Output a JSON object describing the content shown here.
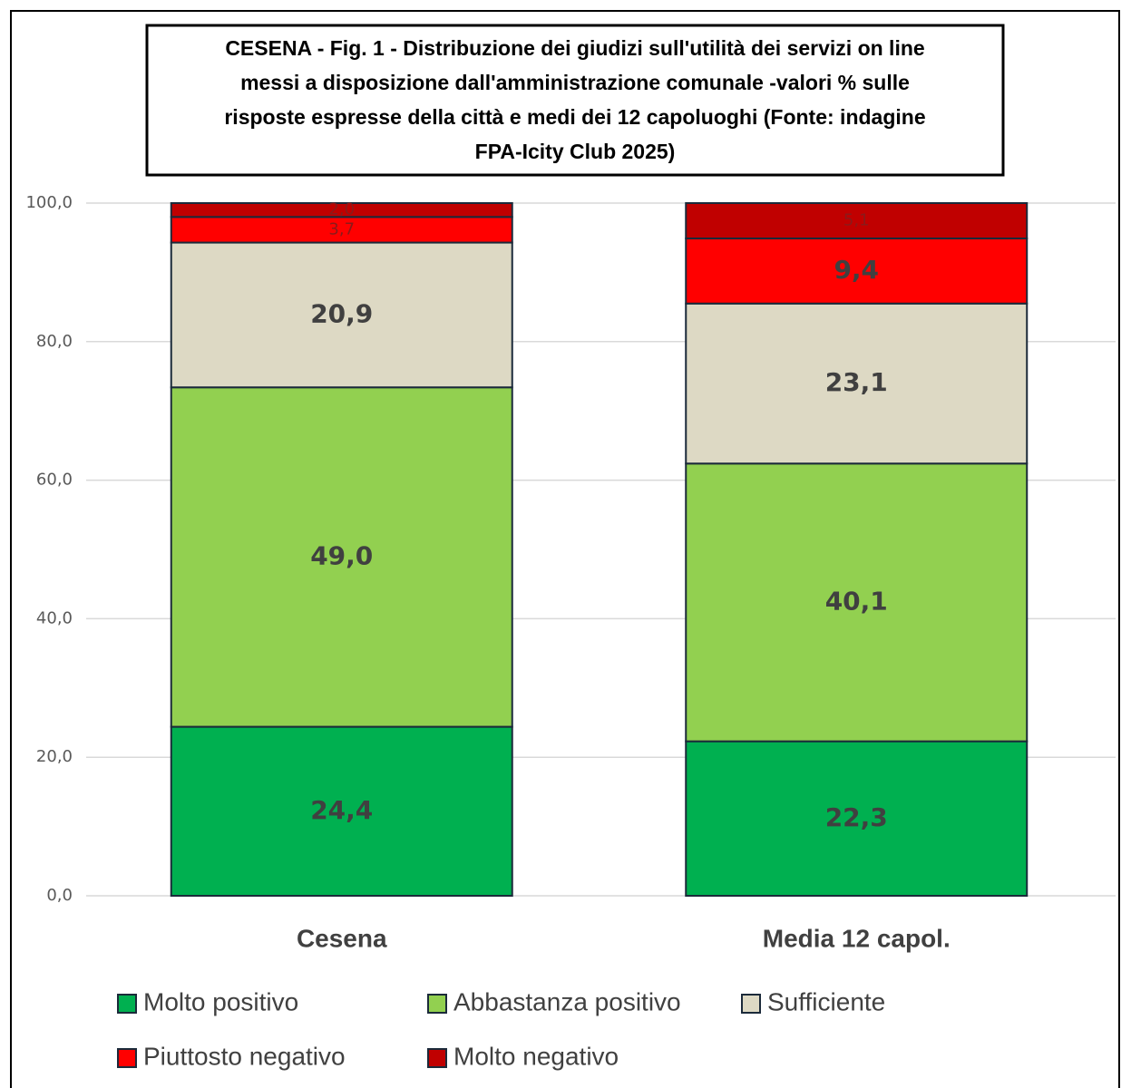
{
  "chart_data": {
    "type": "stacked_bar",
    "title": [
      "CESENA - Fig. 1 - Distribuzione dei giudizi sull'utilità dei servizi on line",
      "messi a disposizione dall'amministrazione  comunale  -valori % sulle",
      "risposte espresse della città e medi dei 12 capoluoghi  (Fonte: indagine",
      "FPA-Icity Club 2025)"
    ],
    "categories": [
      "Cesena",
      "Media 12 capol."
    ],
    "series": [
      {
        "name": "Molto positivo",
        "color": "#00b050",
        "values": [
          24.4,
          22.3
        ],
        "value_labels": [
          "24,4",
          "22,3"
        ]
      },
      {
        "name": "Abbastanza positivo",
        "color": "#92d050",
        "values": [
          49.0,
          40.1
        ],
        "value_labels": [
          "49,0",
          "40,1"
        ]
      },
      {
        "name": "Sufficiente",
        "color": "#ddd9c4",
        "values": [
          20.9,
          23.1
        ],
        "value_labels": [
          "20,9",
          "23,1"
        ]
      },
      {
        "name": "Piuttosto negativo",
        "color": "#ff0000",
        "values": [
          3.7,
          9.4
        ],
        "value_labels": [
          "3,7",
          "9,4"
        ]
      },
      {
        "name": "Molto negativo",
        "color": "#c00000",
        "values": [
          2.0,
          5.1
        ],
        "value_labels": [
          "2,0",
          "5,1"
        ]
      }
    ],
    "ylim": [
      0,
      100
    ],
    "yticks": [
      {
        "value": 0,
        "label": "0,0"
      },
      {
        "value": 20,
        "label": "20,0"
      },
      {
        "value": 40,
        "label": "40,0"
      },
      {
        "value": 60,
        "label": "60,0"
      },
      {
        "value": 80,
        "label": "80,0"
      },
      {
        "value": 100,
        "label": "100,0"
      }
    ],
    "grid": true,
    "legend": "bottom"
  }
}
